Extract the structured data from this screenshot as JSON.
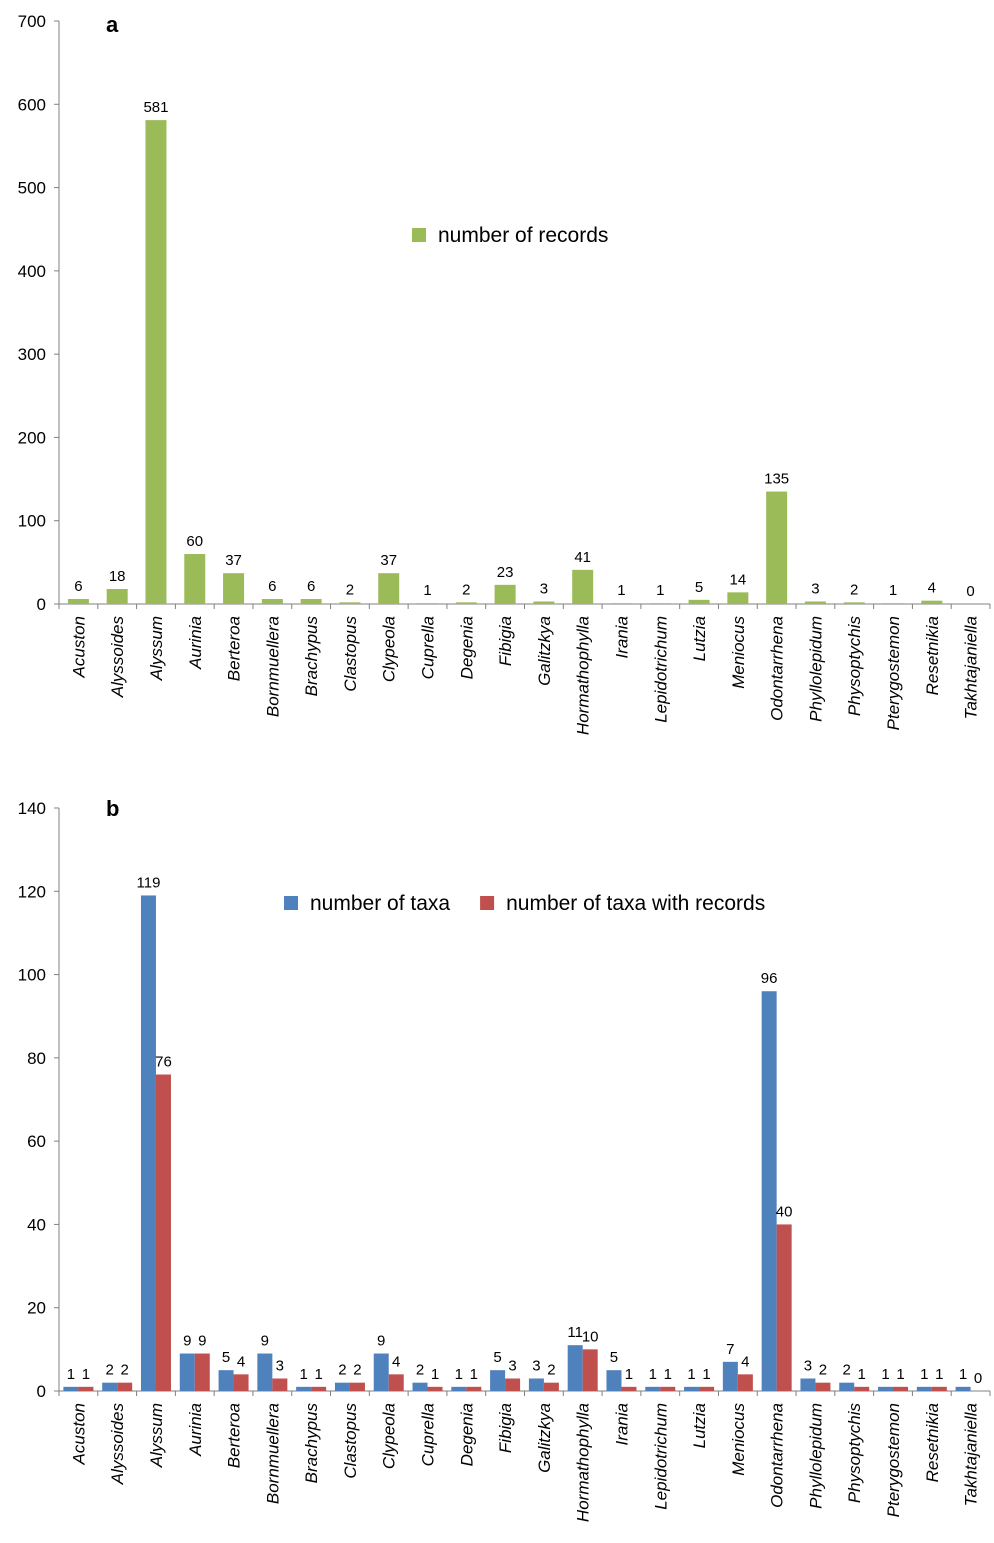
{
  "chart_data": [
    {
      "type": "bar",
      "panel": "a",
      "categories": [
        "Acuston",
        "Alyssoides",
        "Alyssum",
        "Aurinia",
        "Berteroa",
        "Bornmuellera",
        "Brachypus",
        "Clastopus",
        "Clypeola",
        "Cuprella",
        "Degenia",
        "Fibigia",
        "Galitzkya",
        "Hormathophylla",
        "Irania",
        "Lepidotrichum",
        "Lutzia",
        "Meniocus",
        "Odontarrhena",
        "Phyllolepidum",
        "Physoptychis",
        "Pterygostemon",
        "Resetnikia",
        "Takhtajaniella"
      ],
      "series": [
        {
          "name": "number of records",
          "color": "#9bbb59",
          "values": [
            6,
            18,
            581,
            60,
            37,
            6,
            6,
            2,
            37,
            1,
            2,
            23,
            3,
            41,
            1,
            1,
            5,
            14,
            135,
            3,
            2,
            1,
            4,
            0
          ]
        }
      ],
      "yticks": [
        0,
        100,
        200,
        300,
        400,
        500,
        600,
        700
      ],
      "ylim": [
        0,
        700
      ],
      "legend": "center"
    },
    {
      "type": "bar",
      "panel": "b",
      "categories": [
        "Acuston",
        "Alyssoides",
        "Alyssum",
        "Aurinia",
        "Berteroa",
        "Bornmuellera",
        "Brachypus",
        "Clastopus",
        "Clypeola",
        "Cuprella",
        "Degenia",
        "Fibigia",
        "Galitzkya",
        "Hormathophylla",
        "Irania",
        "Lepidotrichum",
        "Lutzia",
        "Meniocus",
        "Odontarrhena",
        "Phyllolepidum",
        "Physoptychis",
        "Pterygostemon",
        "Resetnikia",
        "Takhtajaniella"
      ],
      "series": [
        {
          "name": "number of taxa",
          "color": "#4f81bd",
          "values": [
            1,
            2,
            119,
            9,
            5,
            9,
            1,
            2,
            9,
            2,
            1,
            5,
            3,
            11,
            5,
            1,
            1,
            7,
            96,
            3,
            2,
            1,
            1,
            1
          ]
        },
        {
          "name": "number of taxa with records",
          "color": "#c0504d",
          "values": [
            1,
            2,
            76,
            9,
            4,
            3,
            1,
            2,
            4,
            1,
            1,
            3,
            2,
            10,
            1,
            1,
            1,
            4,
            40,
            2,
            1,
            1,
            1,
            0
          ]
        }
      ],
      "yticks": [
        0,
        20,
        40,
        60,
        80,
        100,
        120,
        140
      ],
      "ylim": [
        0,
        140
      ],
      "legend": "top-center"
    }
  ]
}
